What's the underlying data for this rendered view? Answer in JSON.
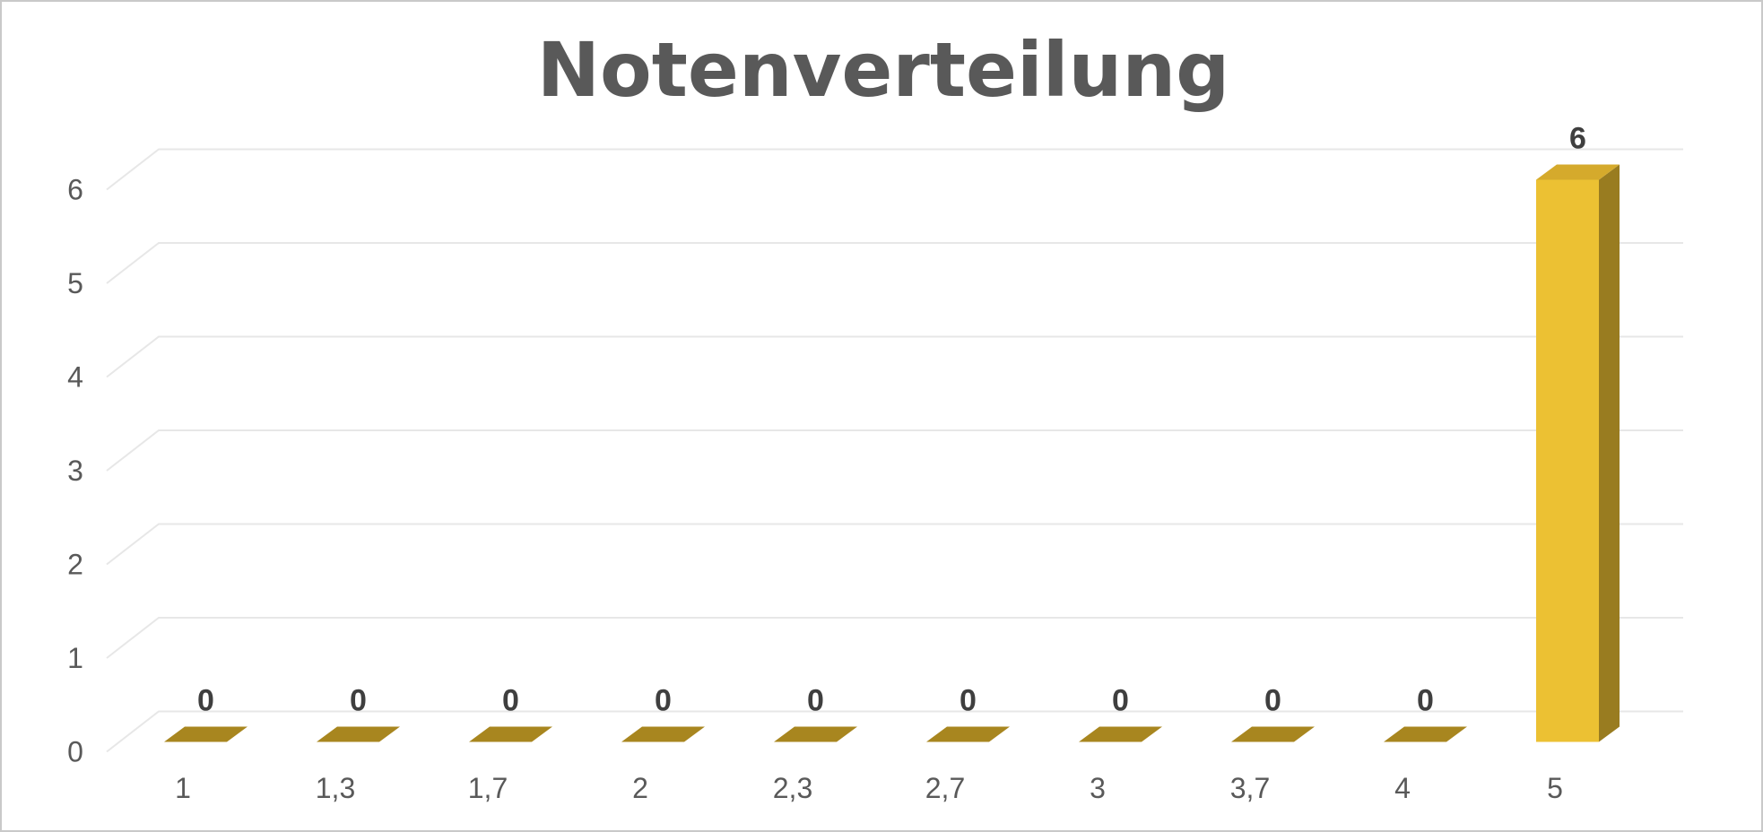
{
  "window": {
    "background": "#ffffff",
    "border_color": "#c9c9c9"
  },
  "chart_data": {
    "type": "bar",
    "style": "3d-column",
    "title": "Notenverteilung",
    "xlabel": "",
    "ylabel": "",
    "categories": [
      "1",
      "1,3",
      "1,7",
      "2",
      "2,3",
      "2,7",
      "3",
      "3,7",
      "4",
      "5"
    ],
    "values": [
      0,
      0,
      0,
      0,
      0,
      0,
      0,
      0,
      0,
      6
    ],
    "data_labels": [
      "0",
      "0",
      "0",
      "0",
      "0",
      "0",
      "0",
      "0",
      "0",
      "6"
    ],
    "yticks": [
      "0",
      "1",
      "2",
      "3",
      "4",
      "5",
      "6"
    ],
    "ylim": [
      0,
      6
    ],
    "ytick_interval": 1,
    "grid": true,
    "legend_position": "none",
    "colors": {
      "bar_front": "#ecc133",
      "bar_top": "#d5aa2c",
      "bar_side": "#997c20",
      "zero_bar": "#a8861f",
      "gridline": "#e7e7e7",
      "title_text": "#595959",
      "axis_text": "#595959",
      "data_label_text": "#3f3f3f"
    }
  }
}
